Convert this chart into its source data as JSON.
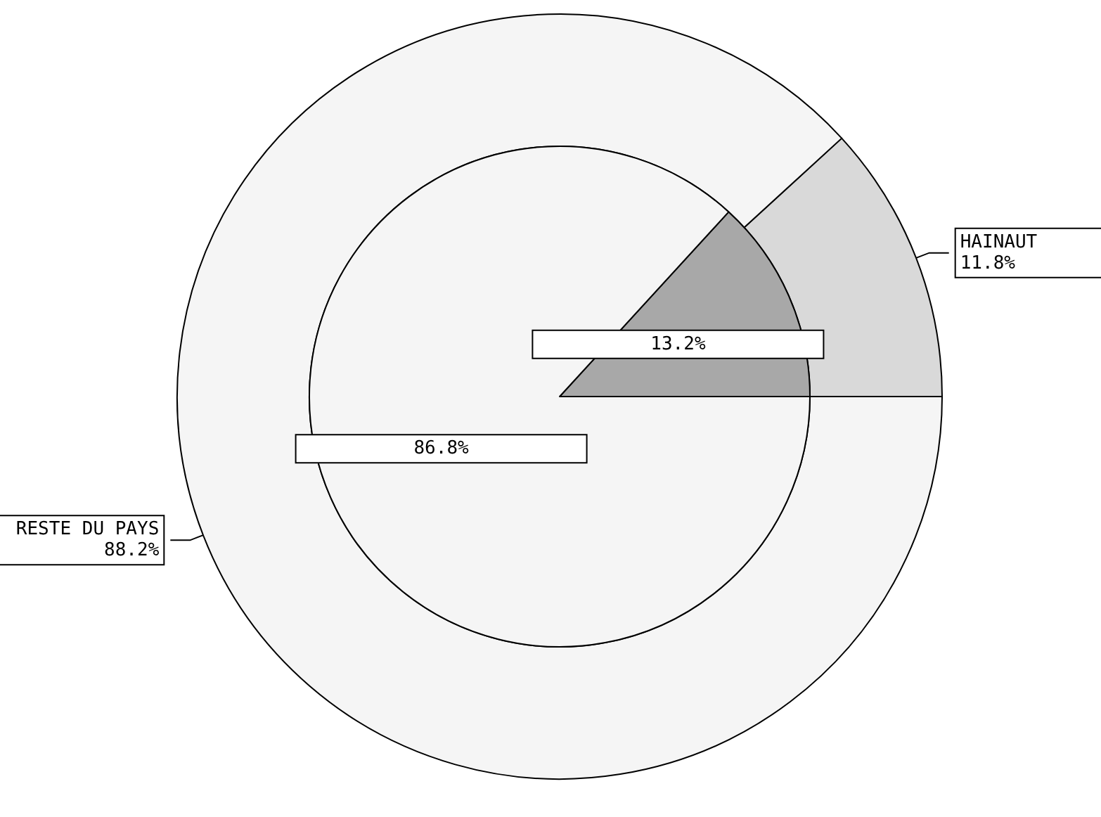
{
  "chart_data": [
    {
      "type": "donut",
      "categories": [
        "HAINAUT",
        "RESTE DU PAYS"
      ],
      "values": [
        11.8,
        88.2
      ],
      "value_labels": [
        "11.8%",
        "88.2%"
      ],
      "colors": [
        "#d9d9d9",
        "#f5f5f5"
      ]
    },
    {
      "type": "pie",
      "categories": [
        null,
        null
      ],
      "values": [
        13.2,
        86.8
      ],
      "value_labels": [
        "13.2%",
        "86.8%"
      ],
      "colors": [
        "#a8a8a8",
        "#f5f5f5"
      ]
    }
  ]
}
